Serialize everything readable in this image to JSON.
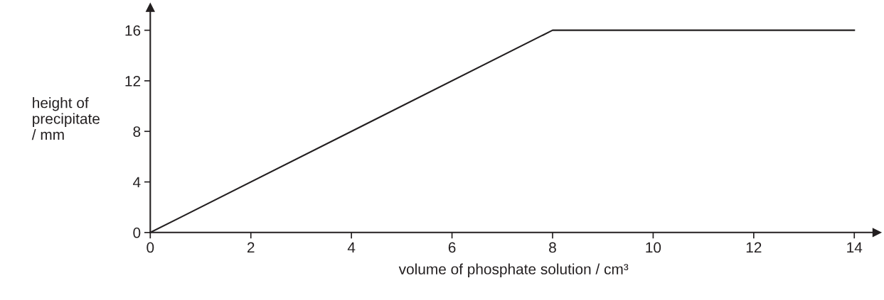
{
  "chart_data": {
    "type": "line",
    "xlabel": "volume of phosphate solution / cm³",
    "ylabel": "height of\nprecipitate\n/ mm",
    "x": [
      0,
      8,
      14
    ],
    "series": [
      {
        "color": "#231f20",
        "values": [
          0,
          16,
          16
        ]
      }
    ],
    "xlim": [
      0,
      14.45
    ],
    "ylim": [
      0,
      17.8
    ],
    "xticks": [
      0,
      2,
      4,
      6,
      8,
      10,
      12,
      14
    ],
    "yticks": [
      0,
      4,
      8,
      12,
      16
    ],
    "grid": false,
    "legend": false,
    "marker": "none",
    "line_style": "solid"
  }
}
